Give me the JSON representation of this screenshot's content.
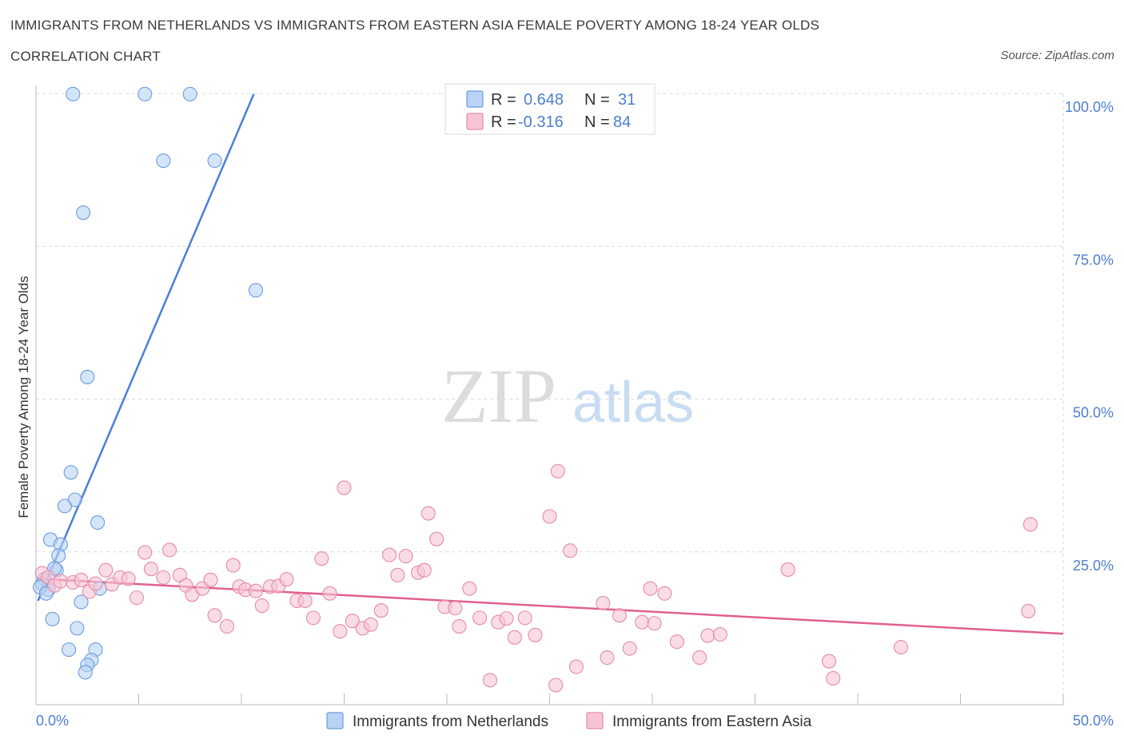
{
  "header": {
    "title": "IMMIGRANTS FROM NETHERLANDS VS IMMIGRANTS FROM EASTERN ASIA FEMALE POVERTY AMONG 18-24 YEAR OLDS",
    "subtitle": "CORRELATION CHART",
    "source": "Source: ZipAtlas.com"
  },
  "watermark": {
    "zip": "ZIP",
    "atlas": "atlas"
  },
  "colors": {
    "blue": "#4a80d8",
    "blue_fill": "#b9d3f4",
    "pink": "#e0608f",
    "pink_fill": "#f7c4d4",
    "axis_text": "#4d7fcf",
    "grid": "#d9d9d9"
  },
  "stats_legend": {
    "rows": [
      {
        "r_label": "R =",
        "r_value": "0.648",
        "n_label": "N =",
        "n_value": "31"
      },
      {
        "r_label": "R =",
        "r_value": "-0.316",
        "n_label": "N =",
        "n_value": "84"
      }
    ]
  },
  "chart_data": {
    "type": "scatter",
    "ylabel": "Female Poverty Among 18-24 Year Olds",
    "xlabel": "",
    "xlim": [
      0,
      50
    ],
    "ylim": [
      0,
      100
    ],
    "x_tick_labels": [
      "0.0%",
      "50.0%"
    ],
    "y_tick_labels": [
      "100.0%",
      "75.0%",
      "50.0%",
      "25.0%"
    ],
    "y_tick_values": [
      100,
      75,
      50,
      25
    ],
    "grid": true,
    "legend_position": "top-center",
    "series": [
      {
        "name": "Immigrants from Netherlands",
        "color": "#4a80d8",
        "trend": {
          "x1": 0.1,
          "y1": 17.0,
          "x2": 10.6,
          "y2": 99.9
        },
        "points": [
          [
            1.8,
            99.9
          ],
          [
            5.3,
            99.9
          ],
          [
            7.5,
            99.9
          ],
          [
            6.2,
            89.0
          ],
          [
            8.7,
            89.0
          ],
          [
            2.3,
            80.5
          ],
          [
            10.7,
            67.8
          ],
          [
            2.5,
            53.6
          ],
          [
            1.7,
            38.0
          ],
          [
            1.9,
            33.5
          ],
          [
            1.4,
            32.5
          ],
          [
            3.0,
            29.8
          ],
          [
            0.7,
            27.0
          ],
          [
            1.2,
            26.2
          ],
          [
            1.1,
            24.4
          ],
          [
            1.0,
            22.0
          ],
          [
            0.4,
            20.5
          ],
          [
            0.3,
            19.8
          ],
          [
            0.6,
            18.8
          ],
          [
            0.2,
            19.2
          ],
          [
            0.5,
            18.2
          ],
          [
            3.1,
            19.0
          ],
          [
            0.9,
            22.3
          ],
          [
            2.2,
            16.8
          ],
          [
            0.8,
            14.0
          ],
          [
            2.0,
            12.5
          ],
          [
            1.6,
            9.0
          ],
          [
            2.9,
            9.0
          ],
          [
            2.7,
            7.3
          ],
          [
            2.5,
            6.5
          ],
          [
            2.4,
            5.3
          ]
        ]
      },
      {
        "name": "Immigrants from Eastern Asia",
        "color": "#e0608f",
        "trend": {
          "x1": 0.1,
          "y1": 20.6,
          "x2": 50.0,
          "y2": 11.6
        },
        "points": [
          [
            0.3,
            21.5
          ],
          [
            0.6,
            20.8
          ],
          [
            0.9,
            19.5
          ],
          [
            1.2,
            20.2
          ],
          [
            1.8,
            20.0
          ],
          [
            2.2,
            20.4
          ],
          [
            2.6,
            18.5
          ],
          [
            2.9,
            19.8
          ],
          [
            3.4,
            22.0
          ],
          [
            3.7,
            19.7
          ],
          [
            4.1,
            20.8
          ],
          [
            4.5,
            20.6
          ],
          [
            4.9,
            17.5
          ],
          [
            5.3,
            24.9
          ],
          [
            5.6,
            22.2
          ],
          [
            6.2,
            20.8
          ],
          [
            6.5,
            25.3
          ],
          [
            7.0,
            21.2
          ],
          [
            7.3,
            19.5
          ],
          [
            7.6,
            18.0
          ],
          [
            8.1,
            19.0
          ],
          [
            8.5,
            20.4
          ],
          [
            8.7,
            14.6
          ],
          [
            9.3,
            12.8
          ],
          [
            9.6,
            22.8
          ],
          [
            9.9,
            19.3
          ],
          [
            10.2,
            18.8
          ],
          [
            10.7,
            18.6
          ],
          [
            11.0,
            16.2
          ],
          [
            11.4,
            19.3
          ],
          [
            11.8,
            19.4
          ],
          [
            12.2,
            20.5
          ],
          [
            12.7,
            17.0
          ],
          [
            13.1,
            17.0
          ],
          [
            13.5,
            14.2
          ],
          [
            13.9,
            23.9
          ],
          [
            14.3,
            18.2
          ],
          [
            14.8,
            12.0
          ],
          [
            15.0,
            35.5
          ],
          [
            15.4,
            13.7
          ],
          [
            15.9,
            12.5
          ],
          [
            16.3,
            13.1
          ],
          [
            16.8,
            15.4
          ],
          [
            17.2,
            24.5
          ],
          [
            17.6,
            21.2
          ],
          [
            18.0,
            24.3
          ],
          [
            18.6,
            21.6
          ],
          [
            18.9,
            22.0
          ],
          [
            19.1,
            31.3
          ],
          [
            19.5,
            27.1
          ],
          [
            19.9,
            16.0
          ],
          [
            20.4,
            15.8
          ],
          [
            20.6,
            12.8
          ],
          [
            21.1,
            19.0
          ],
          [
            21.6,
            14.2
          ],
          [
            22.1,
            4.0
          ],
          [
            22.5,
            13.5
          ],
          [
            22.9,
            14.1
          ],
          [
            23.3,
            11.0
          ],
          [
            23.8,
            14.2
          ],
          [
            24.3,
            11.4
          ],
          [
            25.0,
            30.8
          ],
          [
            25.3,
            3.2
          ],
          [
            25.4,
            38.2
          ],
          [
            26.0,
            25.2
          ],
          [
            26.3,
            6.2
          ],
          [
            27.6,
            16.6
          ],
          [
            27.8,
            7.7
          ],
          [
            28.4,
            14.6
          ],
          [
            28.9,
            9.2
          ],
          [
            29.5,
            13.5
          ],
          [
            29.9,
            19.0
          ],
          [
            30.1,
            13.3
          ],
          [
            30.6,
            18.2
          ],
          [
            31.2,
            10.3
          ],
          [
            32.3,
            7.7
          ],
          [
            32.7,
            11.3
          ],
          [
            33.3,
            11.5
          ],
          [
            36.6,
            22.1
          ],
          [
            38.6,
            7.1
          ],
          [
            38.8,
            4.3
          ],
          [
            42.1,
            9.4
          ],
          [
            48.3,
            15.3
          ],
          [
            48.4,
            29.5
          ]
        ]
      }
    ]
  }
}
